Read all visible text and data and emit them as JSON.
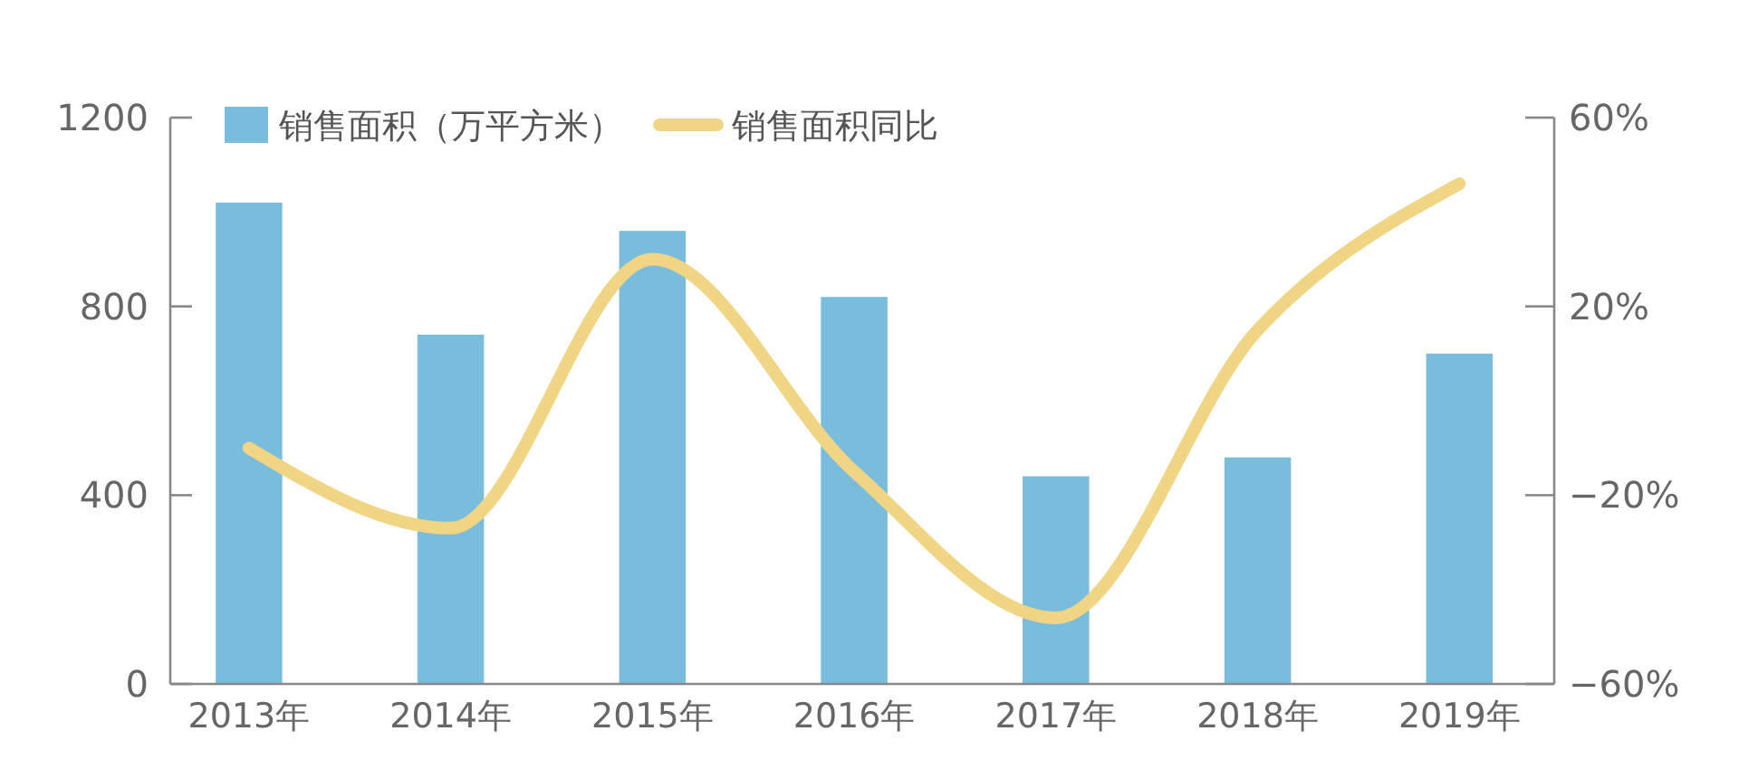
{
  "chart_data": {
    "type": "bar",
    "categories": [
      "2013年",
      "2014年",
      "2015年",
      "2016年",
      "2017年",
      "2018年",
      "2019年"
    ],
    "series": [
      {
        "name": "销售面积（万平方米）",
        "color": "#7abcdc",
        "values": [
          1020,
          740,
          960,
          820,
          440,
          480,
          700
        ]
      },
      {
        "name": "销售面积同比",
        "type": "line",
        "axis": "y2",
        "color": "#f0d584",
        "values": [
          -10,
          -27,
          30,
          -15,
          -46,
          15,
          46
        ]
      }
    ],
    "ylim": [
      0,
      1200
    ],
    "yticks": [
      0,
      400,
      800,
      1200
    ],
    "y2lim": [
      -60,
      60
    ],
    "y2ticks": [
      {
        "value": -60,
        "label": "−60%"
      },
      {
        "value": -20,
        "label": "−20%"
      },
      {
        "value": 20,
        "label": "20%"
      },
      {
        "value": 60,
        "label": "60%"
      }
    ],
    "grid": false,
    "legend": "top left"
  }
}
